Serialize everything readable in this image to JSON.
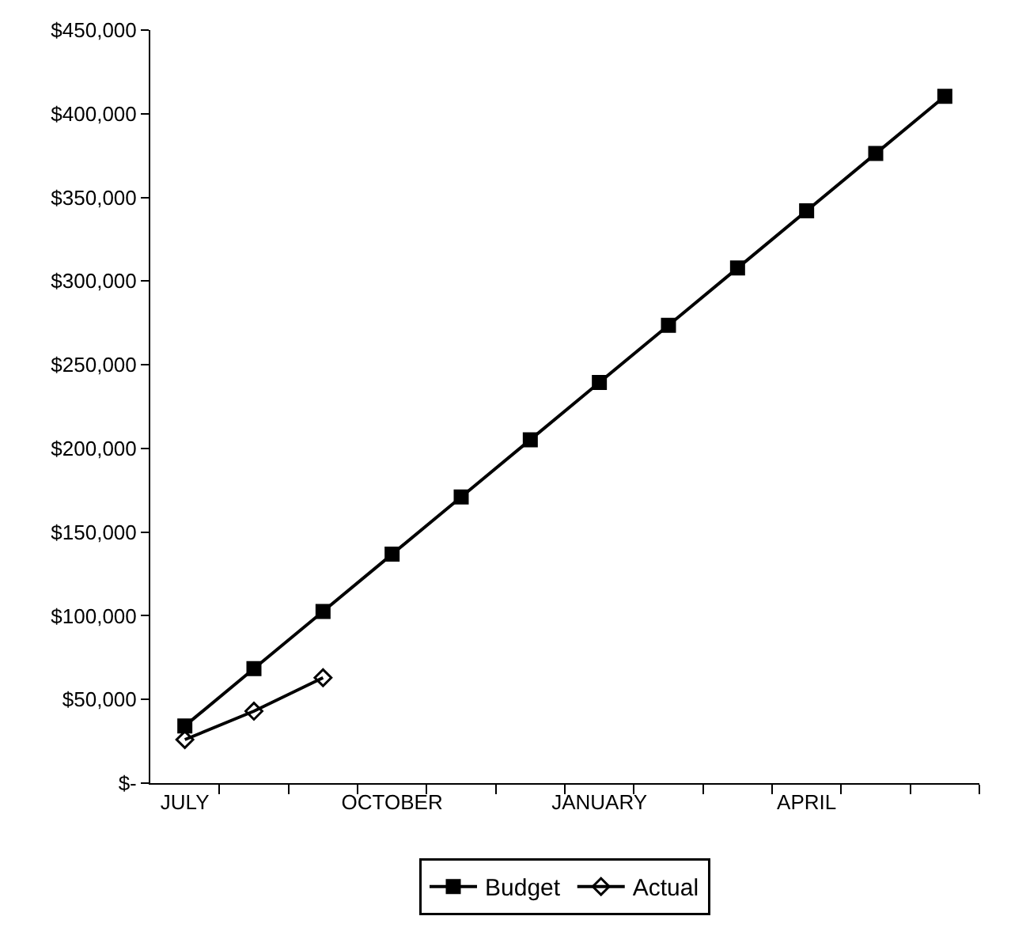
{
  "chart_data": {
    "type": "line",
    "categories": [
      "JULY",
      null,
      null,
      "OCTOBER",
      null,
      null,
      "JANUARY",
      null,
      null,
      "APRIL",
      null,
      null
    ],
    "series": [
      {
        "name": "Budget",
        "color": "#000000",
        "marker": "square",
        "values": [
          34200,
          68400,
          102600,
          136800,
          171000,
          205200,
          239400,
          273600,
          307800,
          342000,
          376200,
          410400
        ]
      },
      {
        "name": "Actual",
        "color": "#000000",
        "marker": "diamond",
        "values": [
          26000,
          43000,
          63000,
          null,
          null,
          null,
          null,
          null,
          null,
          null,
          null,
          null
        ]
      }
    ],
    "ylim": [
      0,
      450000
    ],
    "yticks": [
      {
        "value": 0,
        "label": "$-"
      },
      {
        "value": 50000,
        "label": "$50,000"
      },
      {
        "value": 100000,
        "label": "$100,000"
      },
      {
        "value": 150000,
        "label": "$150,000"
      },
      {
        "value": 200000,
        "label": "$200,000"
      },
      {
        "value": 250000,
        "label": "$250,000"
      },
      {
        "value": 300000,
        "label": "$300,000"
      },
      {
        "value": 350000,
        "label": "$350,000"
      },
      {
        "value": 400000,
        "label": "$400,000"
      },
      {
        "value": 450000,
        "label": "$450,000"
      }
    ],
    "grid": false,
    "legend": "bottom",
    "line_style": "solid"
  }
}
